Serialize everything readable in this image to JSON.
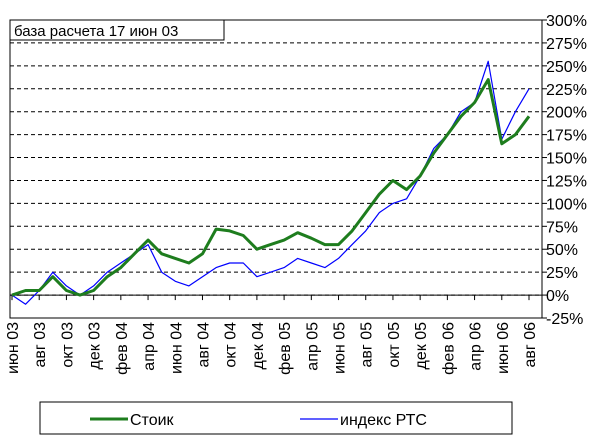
{
  "chart_data": {
    "type": "line",
    "annotation": "база расчета  17 июн 03",
    "categories": [
      "июн 03",
      null,
      "авг 03",
      null,
      "окт 03",
      null,
      "дек 03",
      null,
      "фев 04",
      null,
      "апр 04",
      null,
      "июн 04",
      null,
      "авг 04",
      null,
      "окт 04",
      null,
      "дек 04",
      null,
      "фев 05",
      null,
      "апр 05",
      null,
      "июн 05",
      null,
      "авг 05",
      null,
      "окт 05",
      null,
      "дек 05",
      null,
      "фев 06",
      null,
      "апр 06",
      null,
      "июн 06",
      null,
      "авг 06"
    ],
    "series": [
      {
        "name": "Стоик",
        "color": "#1e7d1e",
        "values": [
          0,
          5,
          5,
          20,
          5,
          0,
          5,
          20,
          30,
          45,
          60,
          45,
          40,
          35,
          45,
          72,
          70,
          65,
          50,
          55,
          60,
          68,
          62,
          55,
          55,
          70,
          90,
          110,
          125,
          115,
          130,
          155,
          175,
          195,
          210,
          235,
          165,
          175,
          195
        ]
      },
      {
        "name": "индекс РТС",
        "color": "#0000ff",
        "values": [
          0,
          -10,
          5,
          25,
          10,
          0,
          10,
          25,
          35,
          45,
          55,
          25,
          15,
          10,
          20,
          30,
          35,
          35,
          20,
          25,
          30,
          40,
          35,
          30,
          40,
          55,
          70,
          90,
          100,
          105,
          130,
          160,
          175,
          200,
          210,
          255,
          170,
          200,
          225
        ]
      }
    ],
    "ylim": [
      -25,
      300
    ],
    "yticks": [
      {
        "value": -25,
        "label": "-25%"
      },
      {
        "value": 0,
        "label": "0%"
      },
      {
        "value": 25,
        "label": "25%"
      },
      {
        "value": 50,
        "label": "50%"
      },
      {
        "value": 75,
        "label": "75%"
      },
      {
        "value": 100,
        "label": "100%"
      },
      {
        "value": 125,
        "label": "125%"
      },
      {
        "value": 150,
        "label": "150%"
      },
      {
        "value": 175,
        "label": "175%"
      },
      {
        "value": 200,
        "label": "200%"
      },
      {
        "value": 225,
        "label": "225%"
      },
      {
        "value": 250,
        "label": "250%"
      },
      {
        "value": 275,
        "label": "275%"
      },
      {
        "value": 300,
        "label": "300%"
      }
    ],
    "grid": true
  }
}
